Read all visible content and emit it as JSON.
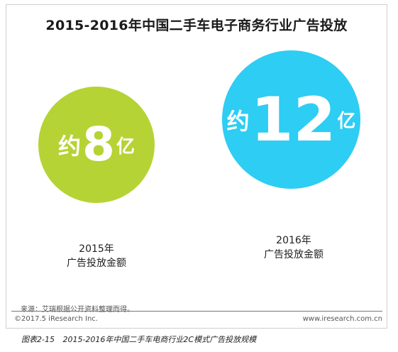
{
  "chart_data": {
    "type": "bubble",
    "title": "2015-2016年中国二手车电子商务行业广告投放",
    "unit": "亿",
    "categories": [
      "2015年",
      "2016年"
    ],
    "metric": "广告投放金额",
    "values": [
      8,
      12
    ],
    "value_prefix": "约",
    "colors": [
      "#b5d334",
      "#2ecdf3"
    ]
  },
  "footer": {
    "source": "来源：艾瑞根据公开资料整理而得。",
    "copyright": "©2017.5 iResearch Inc.",
    "url": "www.iresearch.com.cn"
  },
  "caption": {
    "label": "图表2-15",
    "text": "2015-2016年中国二手车电商行业2C模式广告投放规模"
  }
}
